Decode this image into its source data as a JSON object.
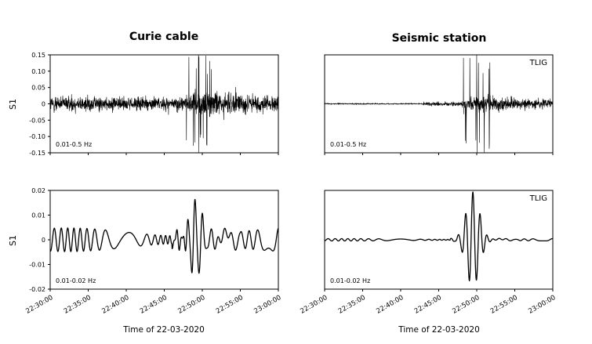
{
  "chart_data": [
    {
      "type": "line",
      "column_title": "Curie cable",
      "ylabel": "S1",
      "filter_label": "0.01-0.5 Hz",
      "station_label": "",
      "yticks": [
        "0.15",
        "0.10",
        "0.05",
        "0",
        "-0.05",
        "-0.10",
        "-0.15"
      ],
      "ylim": [
        -0.15,
        0.15
      ],
      "xlim": [
        "22:30:00",
        "23:00:00"
      ],
      "series": [
        {
          "values_profile": {
            "base_amplitude": 0.035,
            "event_start": "22:47:00",
            "event_peak": "22:49:30",
            "event_peak_amplitude": 0.15,
            "event_level": 0.07
          }
        }
      ]
    },
    {
      "type": "line",
      "column_title": "Seismic station",
      "ylabel": "",
      "filter_label": "0.01-0.5 Hz",
      "station_label": "TLIG",
      "yticks": [],
      "ylim": [
        -0.15,
        0.15
      ],
      "xlim": [
        "22:30:00",
        "23:00:00"
      ],
      "series": [
        {
          "values_profile": {
            "base_amplitude": 0.003,
            "step_time": "22:43:00",
            "step_amplitude": 0.01,
            "event_start": "22:47:00",
            "event_peak": "22:50:00",
            "event_peak_amplitude": 0.15,
            "event_level": 0.04
          }
        }
      ]
    },
    {
      "type": "line",
      "column_title": "",
      "ylabel": "S1",
      "filter_label": "0.01-0.02 Hz",
      "station_label": "",
      "yticks": [
        "0.02",
        "0.01",
        "0",
        "-0.01",
        "-0.02"
      ],
      "ylim": [
        -0.02,
        0.02
      ],
      "xlim": [
        "22:30:00",
        "23:00:00"
      ],
      "series": [
        {
          "values_profile": {
            "base_amplitude": 0.004,
            "event_peak": "22:49:00",
            "event_peak_amplitude": 0.019,
            "event_level": 0.008
          }
        }
      ]
    },
    {
      "type": "line",
      "column_title": "",
      "ylabel": "",
      "filter_label": "0.01-0.02 Hz",
      "station_label": "TLIG",
      "yticks": [],
      "ylim": [
        -0.02,
        0.02
      ],
      "xlim": [
        "22:30:00",
        "23:00:00"
      ],
      "series": [
        {
          "values_profile": {
            "base_amplitude": 0.0004,
            "event_peak": "22:49:30",
            "event_peak_amplitude": 0.019,
            "event_level": 0.001
          }
        }
      ]
    }
  ],
  "xticks": [
    "22:30:00",
    "22:35:00",
    "22:40:00",
    "22:45:00",
    "22:50:00",
    "22:55:00",
    "23:00:00"
  ],
  "xlabel": "Time of 22-03-2020"
}
